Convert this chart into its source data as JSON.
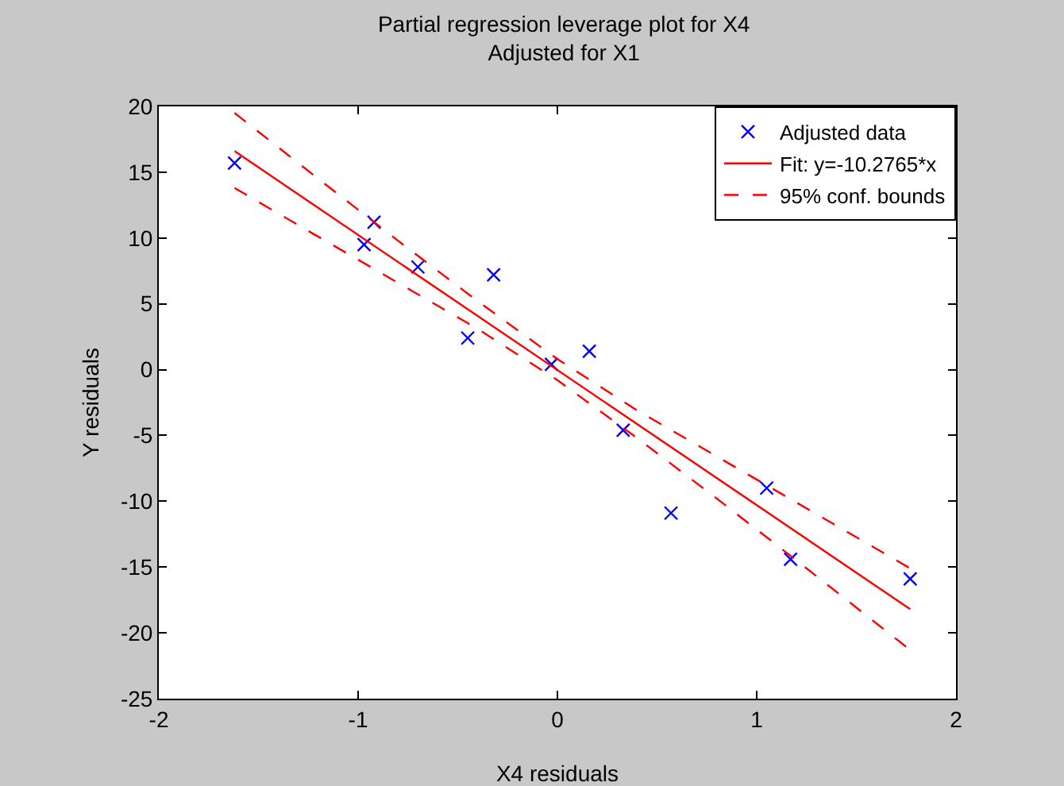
{
  "chart_data": {
    "type": "scatter",
    "title": "Partial regression leverage plot for X4\nAdjusted for X1",
    "xlabel": "X4 residuals",
    "ylabel": "Y residuals",
    "xlim": [
      -2,
      2
    ],
    "xticks": [
      -2,
      -1,
      0,
      1,
      2
    ],
    "ylim": [
      -25,
      20
    ],
    "yticks": [
      -25,
      -20,
      -15,
      -10,
      -5,
      0,
      5,
      10,
      15,
      20
    ],
    "grid": false,
    "legend": "top right",
    "series": [
      {
        "name": "Adjusted data",
        "type": "scatter",
        "marker": "cross",
        "color": "#0000ff",
        "x": [
          -1.62,
          -0.97,
          -0.92,
          -0.7,
          -0.45,
          -0.32,
          -0.03,
          0.16,
          0.33,
          0.57,
          1.05,
          1.17,
          1.77
        ],
        "values": [
          15.7,
          9.5,
          11.2,
          7.8,
          2.4,
          7.2,
          0.4,
          1.4,
          -4.6,
          -10.9,
          -9,
          -14.4,
          -15.9
        ]
      },
      {
        "name": "Fit: y=-10.2765*x",
        "type": "line",
        "marker": "none",
        "line_style": "solid",
        "color": "#ff0000",
        "x": [
          -1.62,
          1.77
        ],
        "values": [
          16.6,
          -18.2
        ]
      },
      {
        "name": "95% conf. bounds",
        "type": "line",
        "marker": "none",
        "line_style": "dashed",
        "color": "#ff0000",
        "x": [
          -1.62,
          -1.2,
          -0.8,
          -0.4,
          0,
          0.4,
          0.8,
          1.2,
          1.77
        ],
        "values": [
          19.5,
          14.5,
          9.8,
          5.2,
          0.8,
          -3.1,
          -6.6,
          -10.1,
          -15.1
        ]
      },
      {
        "type": "line",
        "marker": "none",
        "line_style": "dashed",
        "color": "#ff0000",
        "x": [
          -1.62,
          -1.2,
          -0.8,
          -0.4,
          0,
          0.4,
          0.8,
          1.2,
          1.77
        ],
        "values": [
          13.8,
          10.1,
          6.6,
          3.1,
          -0.8,
          -5.2,
          -9.8,
          -14.5,
          -21.3
        ]
      }
    ]
  }
}
